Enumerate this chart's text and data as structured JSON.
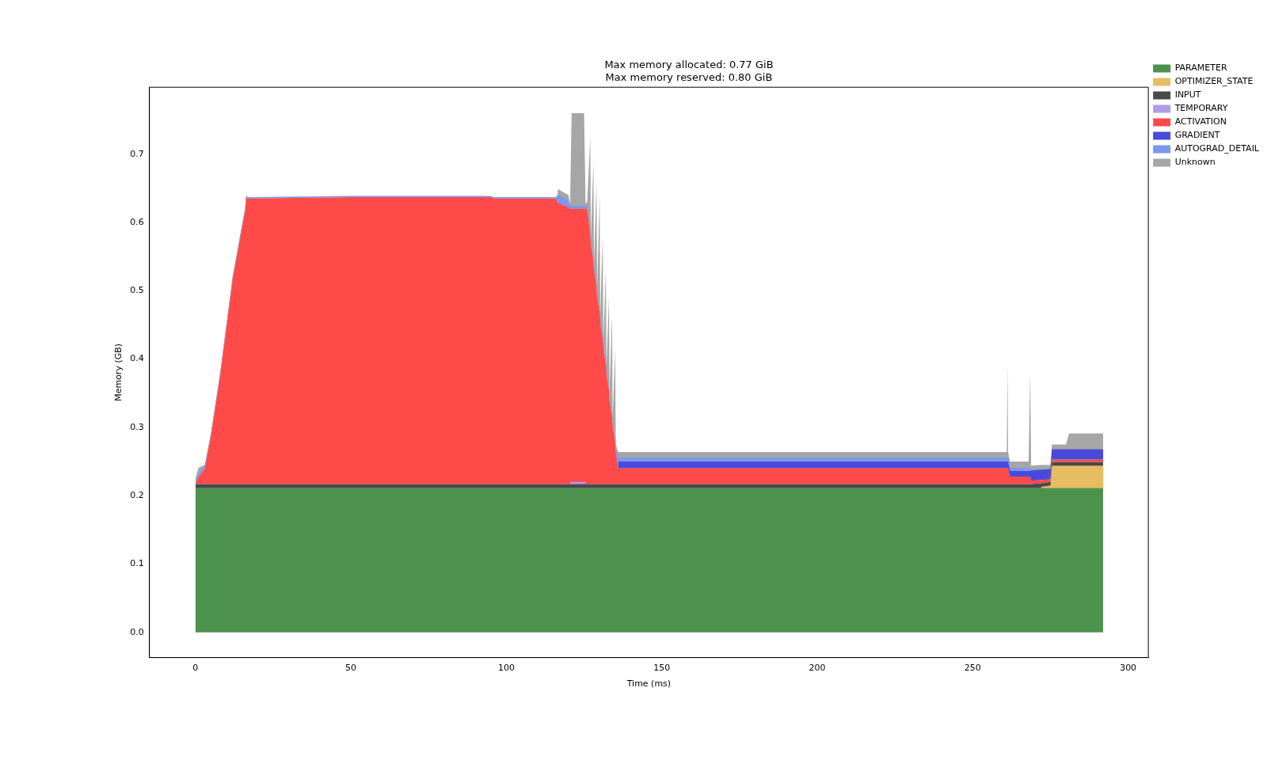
{
  "chart_data": {
    "type": "area",
    "stacked": true,
    "title": "Max memory allocated: 0.77 GiB\nMax memory reserved: 0.80 GiB",
    "xlabel": "Time (ms)",
    "ylabel": "Memory (GB)",
    "legend": "top right",
    "grid": false,
    "marker": "none",
    "xlim": [
      -14.8,
      306.5
    ],
    "xticks": [
      0,
      50,
      100,
      150,
      200,
      250,
      300
    ],
    "ylim": [
      -0.037,
      0.798
    ],
    "yticks": [
      {
        "value": 0,
        "label": "0.0"
      },
      {
        "value": 0.1,
        "label": "0.1"
      },
      {
        "value": 0.2,
        "label": "0.2"
      },
      {
        "value": 0.3,
        "label": "0.3"
      },
      {
        "value": 0.4,
        "label": "0.4"
      },
      {
        "value": 0.5,
        "label": "0.5"
      },
      {
        "value": 0.6,
        "label": "0.6"
      },
      {
        "value": 0.7,
        "label": "0.7"
      }
    ],
    "x": [
      0,
      1,
      3,
      5,
      8,
      10,
      12,
      14,
      16,
      16.3,
      17,
      50,
      95,
      96,
      116,
      116.5,
      120,
      120.5,
      121,
      125,
      125.5,
      126,
      127,
      127.2,
      128,
      128.2,
      129,
      129.2,
      130,
      130.2,
      131,
      131.2,
      132,
      132.2,
      133,
      133.2,
      134,
      134.2,
      135,
      135.2,
      136,
      261,
      261.2,
      261.4,
      262,
      268,
      268.5,
      268.8,
      272,
      275,
      275.5,
      280,
      281,
      291,
      292
    ],
    "series": [
      {
        "name": "PARAMETER",
        "color": "#4c924c",
        "values": [
          0.211,
          0.211,
          0.211,
          0.211,
          0.211,
          0.211,
          0.211,
          0.211,
          0.211,
          0.211,
          0.211,
          0.211,
          0.211,
          0.211,
          0.211,
          0.211,
          0.211,
          0.211,
          0.211,
          0.211,
          0.211,
          0.211,
          0.211,
          0.211,
          0.211,
          0.211,
          0.211,
          0.211,
          0.211,
          0.211,
          0.211,
          0.211,
          0.211,
          0.211,
          0.211,
          0.211,
          0.211,
          0.211,
          0.211,
          0.211,
          0.211,
          0.211,
          0.211,
          0.211,
          0.211,
          0.211,
          0.211,
          0.211,
          0.211,
          0.211,
          0.211,
          0.211,
          0.211,
          0.211,
          0.211
        ]
      },
      {
        "name": "OPTIMIZER_STATE",
        "color": "#e6bd62",
        "values": [
          null,
          null,
          null,
          null,
          null,
          null,
          null,
          null,
          null,
          null,
          null,
          null,
          null,
          null,
          null,
          null,
          null,
          null,
          null,
          null,
          null,
          null,
          null,
          null,
          null,
          null,
          null,
          null,
          null,
          null,
          null,
          null,
          null,
          null,
          null,
          null,
          null,
          null,
          null,
          null,
          null,
          null,
          null,
          null,
          null,
          null,
          null,
          null,
          0.002,
          0.004,
          0.033,
          0.033,
          0.033,
          0.033,
          0.033
        ]
      },
      {
        "name": "INPUT",
        "color": "#4a4a4a",
        "values": [
          0.006,
          0.006,
          0.006,
          0.006,
          0.006,
          0.006,
          0.006,
          0.006,
          0.006,
          0.006,
          0.006,
          0.006,
          0.006,
          0.006,
          0.006,
          0.006,
          0.006,
          0.006,
          0.006,
          0.006,
          0.006,
          0.006,
          0.006,
          0.006,
          0.006,
          0.006,
          0.006,
          0.006,
          0.006,
          0.006,
          0.006,
          0.006,
          0.006,
          0.006,
          0.006,
          0.006,
          0.006,
          0.006,
          0.006,
          0.006,
          0.006,
          0.006,
          0.006,
          0.006,
          0.006,
          0.006,
          0.006,
          0.006,
          0.005,
          0.005,
          0.005,
          0.005,
          0.005,
          0.005,
          0.005
        ]
      },
      {
        "name": "TEMPORARY",
        "color": "#b39ce6",
        "values": [
          null,
          null,
          null,
          null,
          null,
          null,
          null,
          null,
          null,
          null,
          null,
          null,
          null,
          null,
          null,
          null,
          null,
          0.003,
          0.003,
          0.003,
          0.003,
          null,
          null,
          null,
          null,
          null,
          null,
          null,
          null,
          null,
          null,
          null,
          null,
          null,
          null,
          null,
          null,
          null,
          null,
          null,
          null,
          null,
          null,
          null,
          null,
          null,
          null,
          null,
          null,
          null,
          null,
          null,
          null,
          null,
          null
        ]
      },
      {
        "name": "ACTIVATION",
        "color": "#ff4a4a",
        "values": [
          0,
          0.01,
          0.022,
          0.07,
          0.16,
          0.23,
          0.3,
          0.35,
          0.4,
          0.418,
          0.418,
          0.42,
          0.42,
          0.418,
          0.418,
          0.412,
          0.405,
          0.4,
          0.4,
          0.4,
          0.4,
          0.403,
          0.365,
          0.35,
          0.327,
          0.312,
          0.289,
          0.274,
          0.251,
          0.236,
          0.213,
          0.198,
          0.175,
          0.16,
          0.137,
          0.122,
          0.099,
          0.084,
          0.061,
          0.046,
          0.023,
          0.023,
          0.023,
          0.023,
          0.011,
          0.011,
          0.011,
          0.005,
          0.005,
          0.004,
          0.004,
          0.004,
          0.004,
          0.004,
          0.004
        ]
      },
      {
        "name": "GRADIENT",
        "color": "#4a4ad9",
        "values": [
          null,
          null,
          null,
          null,
          null,
          null,
          null,
          null,
          null,
          null,
          null,
          null,
          null,
          null,
          null,
          null,
          null,
          null,
          null,
          null,
          null,
          null,
          null,
          null,
          null,
          null,
          null,
          null,
          null,
          null,
          null,
          null,
          null,
          null,
          null,
          null,
          null,
          null,
          null,
          null,
          0.01,
          0.01,
          0.01,
          0.01,
          0.008,
          0.008,
          0.008,
          0.015,
          0.015,
          0.015,
          0.015,
          0.015,
          0.015,
          0.015,
          0.015
        ]
      },
      {
        "name": "AUTOGRAD_DETAIL",
        "color": "#7a98ec",
        "values": [
          0.004,
          0.004,
          0.004,
          0.004,
          0.004,
          0.004,
          0.004,
          0.004,
          0.004,
          0.004,
          0.002,
          0.002,
          0.002,
          0.002,
          0.002,
          0.012,
          0.01,
          0.004,
          0.004,
          0.004,
          0.004,
          0.004,
          0.004,
          0.004,
          0.004,
          0.004,
          0.004,
          0.004,
          0.004,
          0.004,
          0.004,
          0.004,
          0.004,
          0.004,
          0.004,
          0.004,
          0.004,
          0.004,
          0.004,
          0.004,
          0.006,
          0.006,
          0.006,
          0.006,
          0.005,
          0.005,
          0.005,
          0.001,
          0.001,
          null,
          null,
          null,
          null,
          null,
          null
        ]
      },
      {
        "name": "Unknown",
        "color": "#a6a6a6",
        "values": [
          0.004,
          0.01,
          0.002,
          0.001,
          0.001,
          0.001,
          0.001,
          0.001,
          0.001,
          0.006,
          null,
          null,
          null,
          null,
          null,
          0.008,
          0.008,
          0.003,
          0.136,
          0.136,
          0.004,
          0.006,
          0.139,
          0.008,
          0.142,
          0.008,
          0.15,
          0.008,
          0.168,
          0.008,
          0.146,
          0.008,
          0.134,
          0.008,
          0.132,
          0.008,
          0.145,
          0.008,
          0.133,
          0.008,
          0.008,
          0.008,
          0.137,
          0.008,
          0.009,
          0.009,
          0.14,
          0.006,
          0.006,
          0.006,
          0.007,
          0.007,
          0.023,
          0.023,
          0.023
        ]
      }
    ]
  }
}
